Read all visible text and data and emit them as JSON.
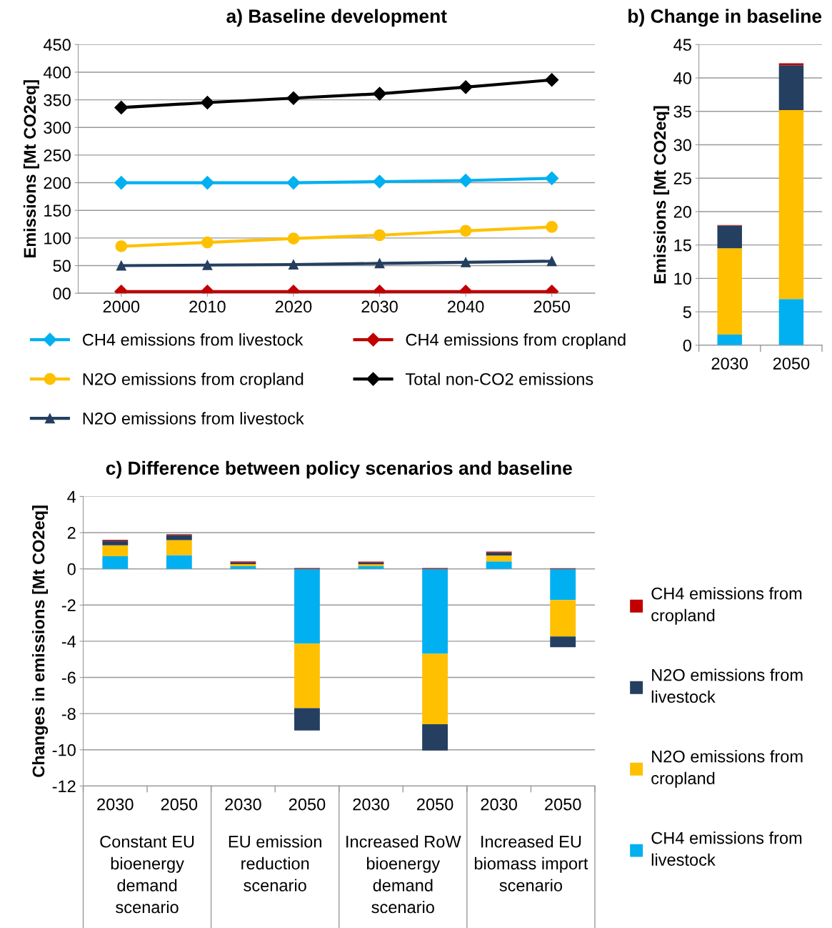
{
  "chart_data": [
    {
      "type": "line",
      "title": "a) Baseline development",
      "ylabel": "Emissions [Mt CO2eq]",
      "x": [
        2000,
        2010,
        2020,
        2030,
        2040,
        2050
      ],
      "xlim": [
        1995,
        2055
      ],
      "xticks": [
        2000,
        2010,
        2020,
        2030,
        2040,
        2050
      ],
      "ylim": [
        0,
        450
      ],
      "yticks": [
        {
          "value": 0,
          "label": "00"
        },
        50,
        100,
        150,
        200,
        250,
        300,
        350,
        400,
        450
      ],
      "grid": "y",
      "legend": "bottom",
      "series": [
        {
          "name": "CH4 emissions from livestock",
          "color": "#00b0f0",
          "marker": "diamond",
          "values": [
            200,
            200,
            200,
            202,
            204,
            208
          ]
        },
        {
          "name": "N2O emissions from cropland",
          "color": "#ffc000",
          "marker": "circle",
          "values": [
            85,
            92,
            99,
            105,
            113,
            120
          ]
        },
        {
          "name": "N2O emissions from livestock",
          "color": "#243f60",
          "marker": "triangle",
          "values": [
            50,
            51,
            52,
            54,
            56,
            58
          ]
        },
        {
          "name": "CH4 emissions from cropland",
          "color": "#c00000",
          "marker": "diamond",
          "values": [
            3,
            3,
            3,
            3,
            3,
            3
          ]
        },
        {
          "name": "Total non-CO2 emissions",
          "color": "#000000",
          "marker": "diamond",
          "values": [
            336,
            345,
            353,
            361,
            373,
            386
          ]
        }
      ]
    },
    {
      "type": "bar",
      "stacked": true,
      "title": "b) Change in baseline",
      "ylabel": "Emissions [Mt CO2eq]",
      "categories": [
        "2030",
        "2050"
      ],
      "ylim": [
        0,
        45
      ],
      "yticks": [
        0,
        5,
        10,
        15,
        20,
        25,
        30,
        35,
        40,
        45
      ],
      "grid": "y",
      "series": [
        {
          "color": "#00b0f0",
          "values": [
            1.6,
            6.9
          ]
        },
        {
          "color": "#ffc000",
          "values": [
            12.9,
            28.3
          ]
        },
        {
          "color": "#243f60",
          "values": [
            3.4,
            6.7
          ]
        },
        {
          "color": "#c00000",
          "values": [
            0.1,
            0.3
          ]
        }
      ]
    },
    {
      "type": "bar",
      "stacked": true,
      "title": "c) Difference between policy scenarios and baseline",
      "ylabel": "Changes in emissions [Mt CO2eq]",
      "categories": [
        "2030",
        "2050",
        "2030",
        "2050",
        "2030",
        "2050",
        "2030",
        "2050"
      ],
      "ylim": [
        -12,
        4
      ],
      "yticks": [
        -12,
        -10,
        -8,
        -6,
        -4,
        -2,
        0,
        2,
        4
      ],
      "grid": "y",
      "legend": "right",
      "annotations": [
        "Constant EU bioenergy demand scenario",
        "EU emission reduction scenario",
        "Increased RoW bioenergy demand scenario",
        "Increased EU biomass import scenario"
      ],
      "series": [
        {
          "name": "CH4 emissions from livestock",
          "color": "#00b0f0",
          "values": [
            0.7,
            0.76,
            0.15,
            -4.13,
            0.15,
            -4.69,
            0.41,
            -1.72
          ]
        },
        {
          "name": "N2O emissions from cropland",
          "color": "#ffc000",
          "values": [
            0.6,
            0.83,
            0.11,
            -3.57,
            0.1,
            -3.9,
            0.33,
            -2.02
          ]
        },
        {
          "name": "N2O emissions from livestock",
          "color": "#243f60",
          "values": [
            0.26,
            0.28,
            0.09,
            -1.23,
            0.1,
            -1.45,
            0.17,
            -0.59
          ]
        },
        {
          "name": "CH4 emissions from cropland",
          "color": "#c00000",
          "values": [
            0.05,
            0.04,
            0.06,
            0.05,
            0.05,
            0.05,
            0.05,
            0.04
          ]
        }
      ]
    }
  ]
}
